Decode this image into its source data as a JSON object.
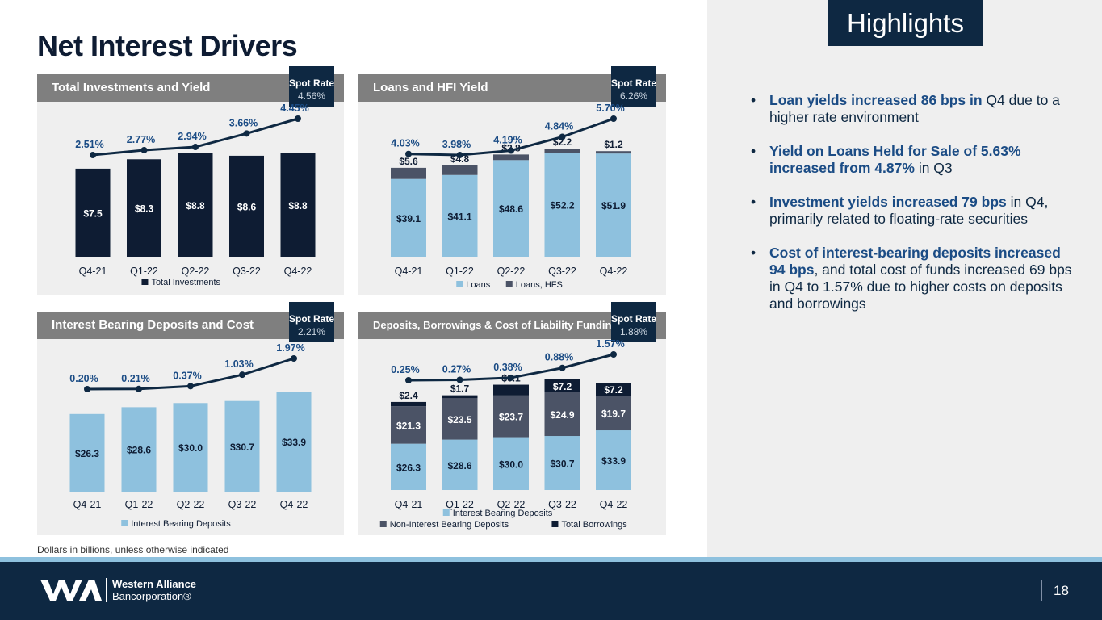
{
  "title": "Net Interest Drivers",
  "highlights": {
    "label": "Highlights",
    "bullets": [
      {
        "bold": "Loan yields increased 86 bps in",
        "rest": " Q4 due to a higher rate environment"
      },
      {
        "bold": "Yield on Loans Held for Sale of 5.63% increased from 4.87%",
        "rest": " in Q3"
      },
      {
        "bold": "Investment yields increased 79 bps",
        "rest": " in Q4, primarily related to floating-rate securities"
      },
      {
        "bold": "Cost of interest-bearing deposits increased 94 bps",
        "rest": ", and total cost of funds increased 69 bps in Q4 to 1.57% due to higher costs on deposits and borrowings"
      }
    ]
  },
  "footnote": "Dollars in billions, unless otherwise indicated",
  "footer": {
    "company_line1": "Western Alliance",
    "company_line2": "Bancorporation®",
    "page_number": "18"
  },
  "colors": {
    "navy": "#0e1c33",
    "light_blue": "#8ec1de",
    "gray_slate": "#4b5366",
    "line": "#0e2842"
  },
  "chart_data": [
    {
      "id": "investments",
      "type": "bar",
      "title": "Total Investments and Yield",
      "spot_label": "Spot Rate",
      "spot_value": "4.56%",
      "categories": [
        "Q4-21",
        "Q1-22",
        "Q2-22",
        "Q3-22",
        "Q4-22"
      ],
      "series": [
        {
          "name": "Total Investments",
          "values": [
            7.5,
            8.3,
            8.8,
            8.6,
            8.8
          ],
          "labels": [
            "$7.5",
            "$8.3",
            "$8.8",
            "$8.6",
            "$8.8"
          ],
          "color": "#0e1c33"
        }
      ],
      "line": {
        "values": [
          2.51,
          2.77,
          2.94,
          3.66,
          4.45
        ],
        "labels": [
          "2.51%",
          "2.77%",
          "2.94%",
          "3.66%",
          "4.45%"
        ]
      },
      "legend": [
        {
          "name": "Total Investments",
          "color": "#0e1c33"
        }
      ],
      "ymax": 8.8
    },
    {
      "id": "loans",
      "type": "bar",
      "title": "Loans and HFI Yield",
      "spot_label": "Spot Rate",
      "spot_value": "6.26%",
      "categories": [
        "Q4-21",
        "Q1-22",
        "Q2-22",
        "Q3-22",
        "Q4-22"
      ],
      "series": [
        {
          "name": "Loans",
          "values": [
            39.1,
            41.1,
            48.6,
            52.2,
            51.9
          ],
          "labels": [
            "$39.1",
            "$41.1",
            "$48.6",
            "$52.2",
            "$51.9"
          ],
          "color": "#8ec1de"
        },
        {
          "name": "Loans, HFS",
          "values": [
            5.6,
            4.8,
            2.8,
            2.2,
            1.2
          ],
          "labels": [
            "$5.6",
            "$4.8",
            "$2.8",
            "$2.2",
            "$1.2"
          ],
          "color": "#4b5366"
        }
      ],
      "line": {
        "values": [
          4.03,
          3.98,
          4.19,
          4.84,
          5.7
        ],
        "labels": [
          "4.03%",
          "3.98%",
          "4.19%",
          "4.84%",
          "5.70%"
        ]
      },
      "legend": [
        {
          "name": "Loans",
          "color": "#8ec1de"
        },
        {
          "name": "Loans, HFS",
          "color": "#4b5366"
        }
      ],
      "ymax": 54.4
    },
    {
      "id": "deposits",
      "type": "bar",
      "title": "Interest Bearing Deposits and Cost",
      "spot_label": "Spot Rate",
      "spot_value": "2.21%",
      "categories": [
        "Q4-21",
        "Q1-22",
        "Q2-22",
        "Q3-22",
        "Q4-22"
      ],
      "series": [
        {
          "name": "Interest Bearing Deposits",
          "values": [
            26.3,
            28.6,
            30.0,
            30.7,
            33.9
          ],
          "labels": [
            "$26.3",
            "$28.6",
            "$30.0",
            "$30.7",
            "$33.9"
          ],
          "color": "#8ec1de"
        }
      ],
      "line": {
        "values": [
          0.2,
          0.21,
          0.37,
          1.03,
          1.97
        ],
        "labels": [
          "0.20%",
          "0.21%",
          "0.37%",
          "1.03%",
          "1.97%"
        ]
      },
      "legend": [
        {
          "name": "Interest Bearing Deposits",
          "color": "#8ec1de"
        }
      ],
      "ymax": 33.9
    },
    {
      "id": "funding",
      "type": "bar",
      "title": "Deposits, Borrowings & Cost of Liability Funding",
      "spot_label": "Spot Rate",
      "spot_value": "1.88%",
      "categories": [
        "Q4-21",
        "Q1-22",
        "Q2-22",
        "Q3-22",
        "Q4-22"
      ],
      "series": [
        {
          "name": "Interest Bearing Deposits",
          "values": [
            26.3,
            28.6,
            30.0,
            30.7,
            33.9
          ],
          "labels": [
            "$26.3",
            "$28.6",
            "$30.0",
            "$30.7",
            "$33.9"
          ],
          "color": "#8ec1de"
        },
        {
          "name": "Non-Interest Bearing Deposits",
          "values": [
            21.3,
            23.5,
            23.7,
            24.9,
            19.7
          ],
          "labels": [
            "$21.3",
            "$23.5",
            "$23.7",
            "$24.9",
            "$19.7"
          ],
          "color": "#4b5366"
        },
        {
          "name": "Total Borrowings",
          "values": [
            2.4,
            1.7,
            6.1,
            7.2,
            7.2
          ],
          "labels": [
            "$2.4",
            "$1.7",
            "$6.1",
            "$7.2",
            "$7.2"
          ],
          "color": "#0e1c33"
        }
      ],
      "line": {
        "values": [
          0.25,
          0.27,
          0.38,
          0.88,
          1.57
        ],
        "labels": [
          "0.25%",
          "0.27%",
          "0.38%",
          "0.88%",
          "1.57%"
        ]
      },
      "legend": [
        {
          "name": "Interest Bearing Deposits",
          "color": "#8ec1de"
        },
        {
          "name": "Non-Interest Bearing Deposits",
          "color": "#4b5366"
        },
        {
          "name": "Total Borrowings",
          "color": "#0e1c33"
        }
      ],
      "ymax": 62.8
    }
  ]
}
